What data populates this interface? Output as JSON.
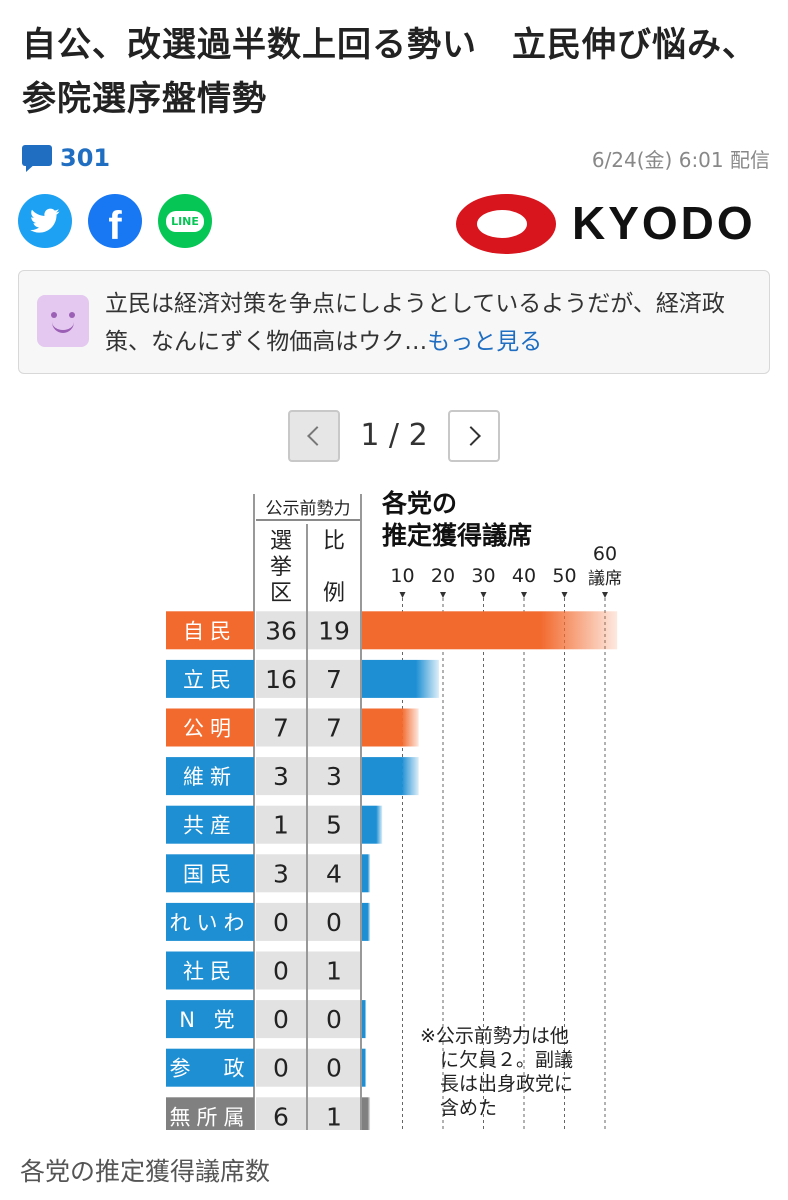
{
  "article": {
    "title": "自公、改選過半数上回る勢い　立民伸び悩み、参院選序盤情勢",
    "comment_count": "301",
    "date": "6/24(金) 6:01 配信",
    "publisher": "KYODO",
    "summary_text": "立民は経済対策を争点にしようとしているようだが、経済政策、なんにずく物価高はウク…",
    "summary_more": "もっと見る",
    "share": {
      "line_label": "LINE"
    }
  },
  "pager": {
    "label": "1 / 2"
  },
  "caption": "各党の推定獲得議席数",
  "colors": {
    "orange": "#f26a2e",
    "blue": "#1e8fd3",
    "gray": "#808080",
    "link": "#1f6ec2"
  },
  "chart_data": {
    "type": "bar",
    "title": "各党の推定獲得議席",
    "header_group": "公示前勢力",
    "header_cols": [
      "選挙区",
      "比例"
    ],
    "axis_ticks": [
      10,
      20,
      30,
      40,
      50,
      60
    ],
    "axis_unit": "議席",
    "note": [
      "※公示前勢力は他",
      "に欠員２。副議",
      "長は出身政党に",
      "含めた"
    ],
    "parties": [
      {
        "name": "自民",
        "senkyoku": "36",
        "hirei": "19",
        "color": "orange",
        "est": 63
      },
      {
        "name": "立民",
        "senkyoku": "16",
        "hirei": "7",
        "color": "blue",
        "est": 19
      },
      {
        "name": "公明",
        "senkyoku": "7",
        "hirei": "7",
        "color": "orange",
        "est": 14
      },
      {
        "name": "維新",
        "senkyoku": "3",
        "hirei": "3",
        "color": "blue",
        "est": 14
      },
      {
        "name": "共産",
        "senkyoku": "1",
        "hirei": "5",
        "color": "blue",
        "est": 5
      },
      {
        "name": "国民",
        "senkyoku": "3",
        "hirei": "4",
        "color": "blue",
        "est": 2
      },
      {
        "name": "れいわ",
        "senkyoku": "0",
        "hirei": "0",
        "color": "blue",
        "est": 2
      },
      {
        "name": "社民",
        "senkyoku": "0",
        "hirei": "1",
        "color": "blue",
        "est": 0
      },
      {
        "name": "N 党",
        "senkyoku": "0",
        "hirei": "0",
        "color": "blue",
        "est": 1
      },
      {
        "name": "参　政",
        "senkyoku": "0",
        "hirei": "0",
        "color": "blue",
        "est": 1
      },
      {
        "name": "無所属",
        "senkyoku": "6",
        "hirei": "1",
        "color": "gray",
        "est": 2
      }
    ]
  }
}
